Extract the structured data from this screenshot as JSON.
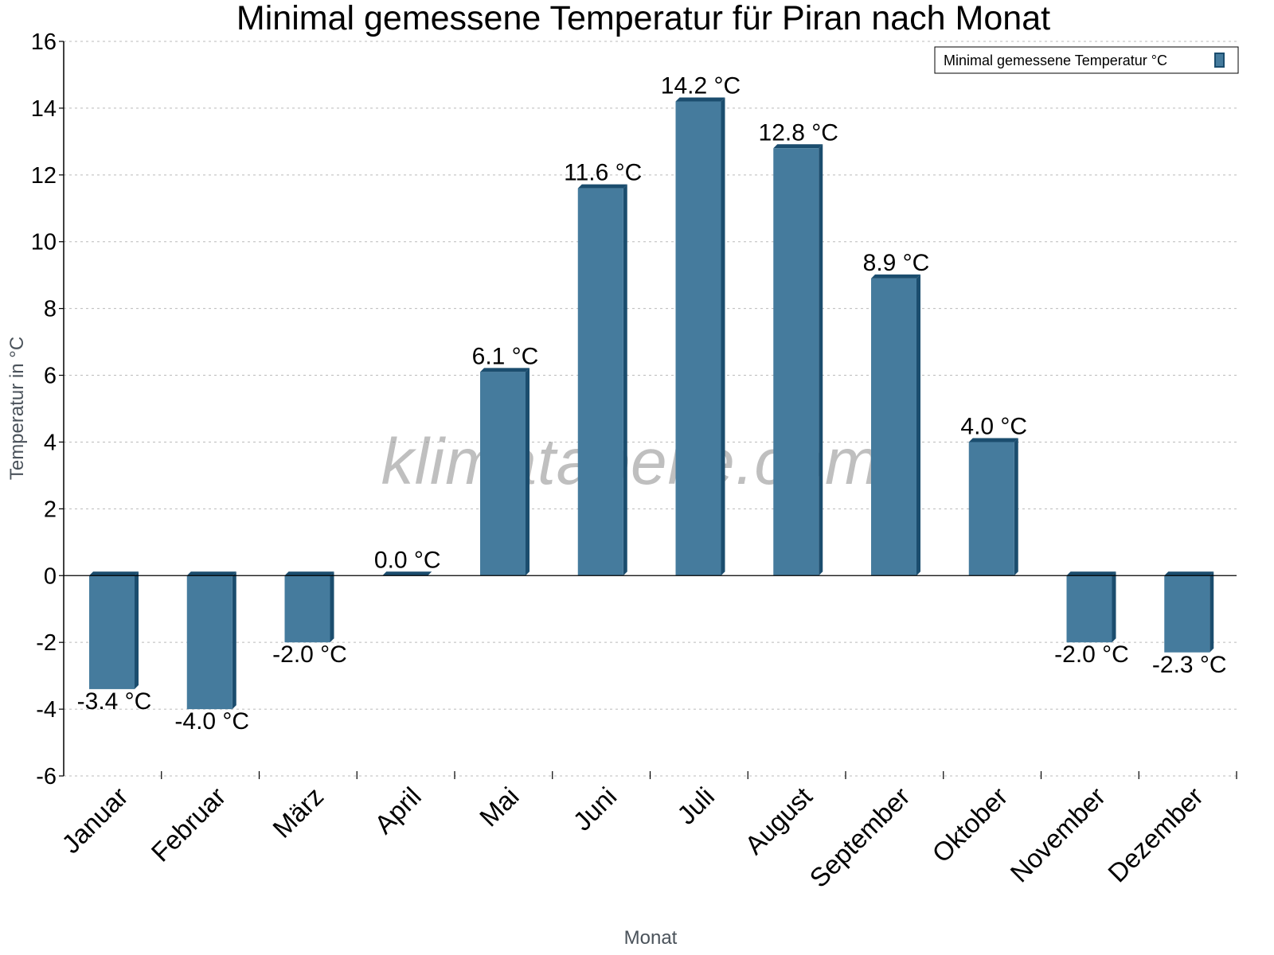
{
  "title": "Minimal gemessene Temperatur für Piran nach Monat",
  "watermark": "klimatabelle.com",
  "colors": {
    "bar_face": "#457b9d",
    "bar_side": "#1b4d6e",
    "grid": "#bbbbbb",
    "axis": "#000000"
  },
  "legend": {
    "label": "Minimal gemessene Temperatur °C"
  },
  "chart_data": {
    "type": "bar",
    "title": "Minimal gemessene Temperatur für Piran nach Monat",
    "xlabel": "Monat",
    "ylabel": "Temperatur in °C",
    "ylim": [
      -6,
      16
    ],
    "yticks": [
      -6,
      -4,
      -2,
      0,
      2,
      4,
      6,
      8,
      10,
      12,
      14,
      16
    ],
    "grid": true,
    "legend_position": "top-right",
    "categories": [
      "Januar",
      "Februar",
      "März",
      "April",
      "Mai",
      "Juni",
      "Juli",
      "August",
      "September",
      "Oktober",
      "November",
      "Dezember"
    ],
    "series": [
      {
        "name": "Minimal gemessene Temperatur °C",
        "values": [
          -3.4,
          -4.0,
          -2.0,
          0.0,
          6.1,
          11.6,
          14.2,
          12.8,
          8.9,
          4.0,
          -2.0,
          -2.3
        ],
        "labels": [
          "-3.4 °C",
          "-4.0 °C",
          "-2.0 °C",
          "0.0 °C",
          "6.1 °C",
          "11.6 °C",
          "14.2 °C",
          "12.8 °C",
          "8.9 °C",
          "4.0 °C",
          "-2.0 °C",
          "-2.3 °C"
        ]
      }
    ]
  }
}
